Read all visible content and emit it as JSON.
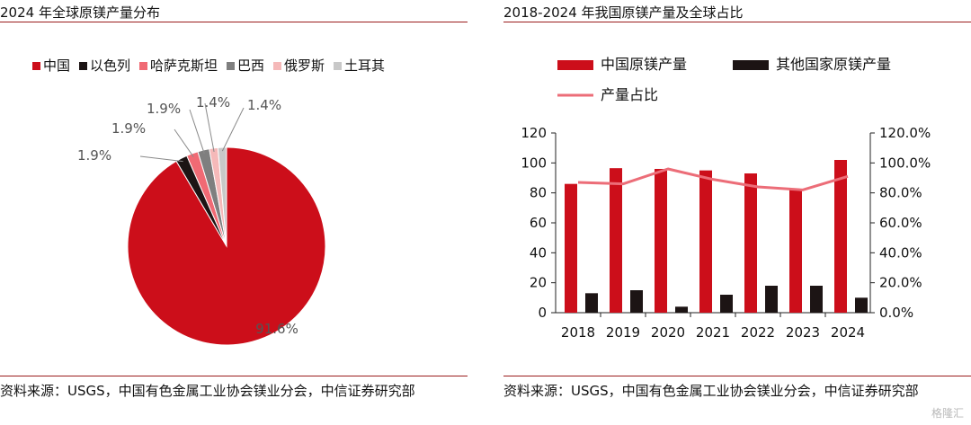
{
  "left_panel": {
    "title": "2024 年全球原镁产量分布",
    "source": "资料来源：USGS，中国有色金属工业协会镁业分会，中信证券研究部"
  },
  "right_panel": {
    "title": "2018-2024 年我国原镁产量及全球占比",
    "source": "资料来源：USGS，中国有色金属工业协会镁业分会，中信证券研究部"
  },
  "watermark": "格隆汇",
  "chart_data": [
    {
      "type": "pie",
      "title": "",
      "legend_position": "top",
      "slices": [
        {
          "label": "中国",
          "value": 91.6,
          "display": "91.6%",
          "color": "#cc0e1a"
        },
        {
          "label": "以色列",
          "value": 1.9,
          "display": "1.9%",
          "color": "#1c1414"
        },
        {
          "label": "哈萨克斯坦",
          "value": 1.9,
          "display": "1.9%",
          "color": "#f06a74"
        },
        {
          "label": "巴西",
          "value": 1.9,
          "display": "1.9%",
          "color": "#7f7f7f"
        },
        {
          "label": "俄罗斯",
          "value": 1.4,
          "display": "1.4%",
          "color": "#f5b9b9"
        },
        {
          "label": "土耳其",
          "value": 1.4,
          "display": "1.4%",
          "color": "#c8c8c8"
        }
      ]
    },
    {
      "type": "bar",
      "title": "",
      "legend_position": "top-left",
      "categories": [
        "2018",
        "2019",
        "2020",
        "2021",
        "2022",
        "2023",
        "2024"
      ],
      "series": [
        {
          "name": "中国原镁产量",
          "kind": "bar",
          "axis": "left",
          "color": "#cc0e1a",
          "values": [
            86,
            96.5,
            96,
            95,
            93,
            82,
            102
          ]
        },
        {
          "name": "其他国家原镁产量",
          "kind": "bar",
          "axis": "left",
          "color": "#1c1414",
          "values": [
            13,
            15,
            4,
            12,
            18,
            18,
            10
          ]
        },
        {
          "name": "产量占比",
          "kind": "line",
          "axis": "right",
          "color": "#ec6d78",
          "values": [
            87,
            86,
            96,
            89,
            84,
            82,
            91
          ]
        }
      ],
      "y_left": {
        "min": 0,
        "max": 120,
        "ticks": [
          "0",
          "20",
          "40",
          "60",
          "80",
          "100",
          "120"
        ]
      },
      "y_right": {
        "min": 0,
        "max": 120,
        "ticks": [
          "0.0%",
          "20.0%",
          "40.0%",
          "60.0%",
          "80.0%",
          "100.0%",
          "120.0%"
        ]
      },
      "grid": false
    }
  ]
}
